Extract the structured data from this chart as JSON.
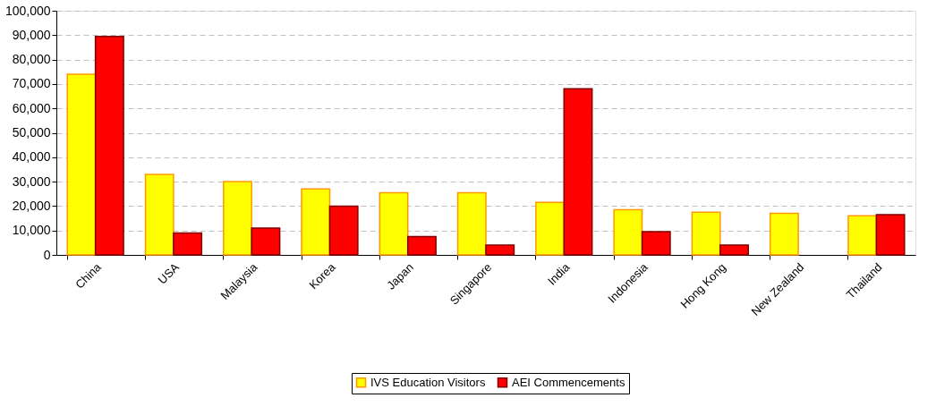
{
  "chart_data": {
    "type": "bar",
    "categories": [
      "China",
      "USA",
      "Malaysia",
      "Korea",
      "Japan",
      "Singapore",
      "India",
      "Indonesia",
      "Hong Kong",
      "New Zealand",
      "Thailand"
    ],
    "series": [
      {
        "name": "IVS Education Visitors",
        "color": "#ffff00",
        "values": [
          74000,
          33000,
          30000,
          27000,
          25500,
          25500,
          21500,
          18500,
          17500,
          17000,
          16000
        ]
      },
      {
        "name": "AEI Commencements",
        "color": "#ff0000",
        "values": [
          89500,
          9000,
          11000,
          20000,
          7500,
          4000,
          68000,
          9500,
          4000,
          null,
          16500
        ]
      }
    ],
    "ylim": [
      0,
      100000
    ],
    "yticks": [
      0,
      {
        "value": 10000,
        "label": "10,000"
      },
      {
        "value": 20000,
        "label": "20,000"
      },
      {
        "value": 30000,
        "label": "30,000"
      },
      {
        "value": 40000,
        "label": "40,000"
      },
      {
        "value": 50000,
        "label": "50,000"
      },
      {
        "value": 60000,
        "label": "60,000"
      },
      {
        "value": 70000,
        "label": "70,000"
      },
      {
        "value": 80000,
        "label": "80,000"
      },
      {
        "value": 90000,
        "label": "90,000"
      },
      {
        "value": 100000,
        "label": "100,000"
      }
    ],
    "grid": "y",
    "legend": "bottom"
  }
}
